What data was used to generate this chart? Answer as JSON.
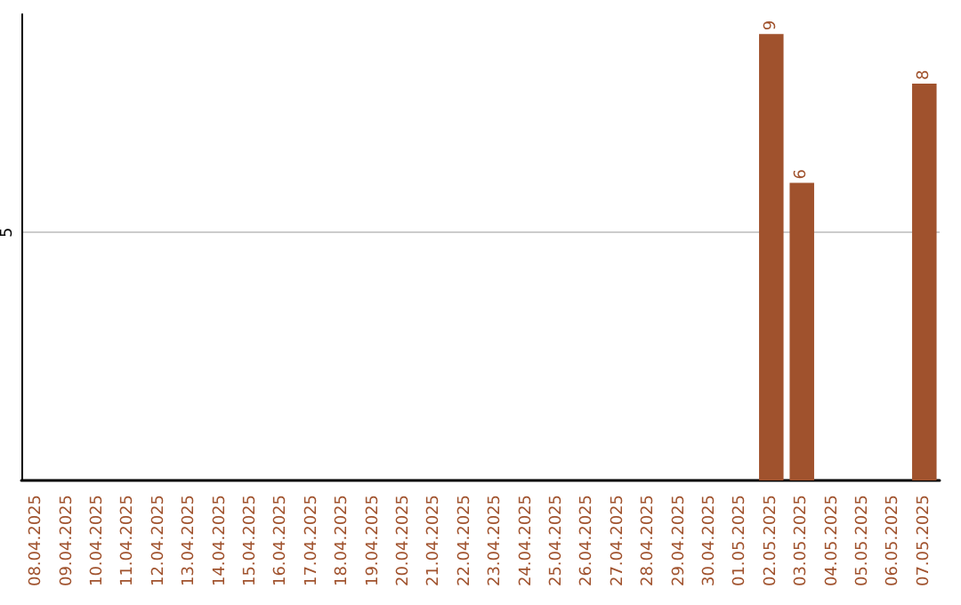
{
  "chart_data": {
    "type": "bar",
    "categories": [
      "08.04.2025",
      "09.04.2025",
      "10.04.2025",
      "11.04.2025",
      "12.04.2025",
      "13.04.2025",
      "14.04.2025",
      "15.04.2025",
      "16.04.2025",
      "17.04.2025",
      "18.04.2025",
      "19.04.2025",
      "20.04.2025",
      "21.04.2025",
      "22.04.2025",
      "23.04.2025",
      "24.04.2025",
      "25.04.2025",
      "26.04.2025",
      "27.04.2025",
      "28.04.2025",
      "29.04.2025",
      "30.04.2025",
      "01.05.2025",
      "02.05.2025",
      "03.05.2025",
      "04.05.2025",
      "05.05.2025",
      "06.05.2025",
      "07.05.2025"
    ],
    "values": [
      null,
      null,
      null,
      null,
      null,
      null,
      null,
      null,
      null,
      null,
      null,
      null,
      null,
      null,
      null,
      null,
      null,
      null,
      null,
      null,
      null,
      null,
      null,
      null,
      9,
      6,
      null,
      null,
      null,
      8
    ],
    "color": "#a0522d",
    "ylim": [
      0,
      9.4
    ],
    "yticks": [
      5
    ],
    "grid": "y",
    "data_labels": true
  }
}
